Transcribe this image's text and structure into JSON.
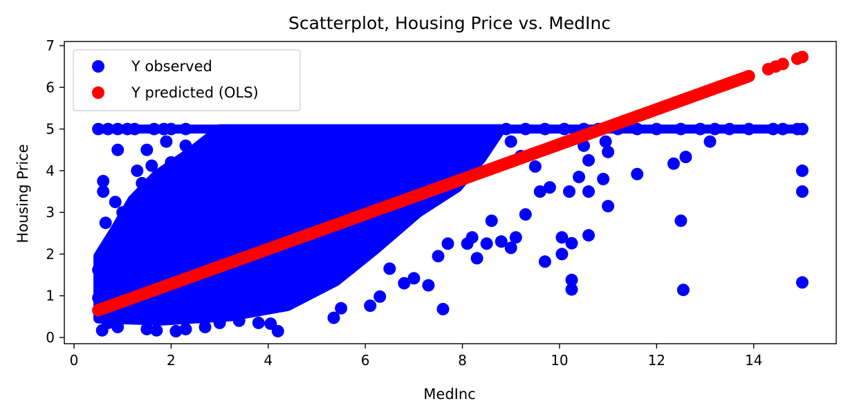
{
  "chart_data": {
    "type": "scatter",
    "title": "Scatterplot, Housing Price vs. MedInc",
    "xlabel": "MedInc",
    "ylabel": "Housing Price",
    "xlim": [
      -0.2,
      15.7
    ],
    "ylim": [
      -0.15,
      7.1
    ],
    "xticks": [
      0,
      2,
      4,
      6,
      8,
      10,
      12,
      14
    ],
    "yticks": [
      0,
      1,
      2,
      3,
      4,
      5,
      6,
      7
    ],
    "grid": false,
    "legend_position": "top-left",
    "series": [
      {
        "name": "Y observed",
        "color": "#0000ff",
        "points": [
          [
            0.5,
            1.62
          ],
          [
            0.55,
            1.1
          ],
          [
            0.6,
            0.8
          ],
          [
            0.5,
            0.95
          ],
          [
            0.58,
            0.17
          ],
          [
            0.7,
            1.3
          ],
          [
            0.8,
            1.55
          ],
          [
            0.95,
            1.95
          ],
          [
            1.2,
            2.3
          ],
          [
            1.1,
            2.75
          ],
          [
            0.65,
            2.75
          ],
          [
            0.6,
            3.5
          ],
          [
            0.6,
            3.75
          ],
          [
            0.85,
            3.25
          ],
          [
            1.0,
            3.0
          ],
          [
            0.9,
            4.5
          ],
          [
            1.3,
            4.0
          ],
          [
            1.5,
            4.5
          ],
          [
            1.9,
            4.7
          ],
          [
            1.6,
            4.12
          ],
          [
            1.4,
            3.7
          ],
          [
            1.8,
            3.55
          ],
          [
            2.2,
            3.8
          ],
          [
            2.0,
            4.2
          ],
          [
            2.5,
            4.3
          ],
          [
            2.3,
            4.6
          ],
          [
            0.7,
            0.35
          ],
          [
            0.9,
            0.25
          ],
          [
            1.2,
            0.5
          ],
          [
            1.5,
            0.2
          ],
          [
            1.7,
            0.17
          ],
          [
            2.1,
            0.15
          ],
          [
            2.3,
            0.2
          ],
          [
            2.7,
            0.25
          ],
          [
            3.0,
            0.35
          ],
          [
            3.4,
            0.4
          ],
          [
            3.8,
            0.35
          ],
          [
            4.05,
            0.33
          ],
          [
            4.2,
            0.15
          ],
          [
            5.35,
            0.47
          ],
          [
            5.5,
            0.7
          ],
          [
            6.1,
            0.76
          ],
          [
            6.3,
            0.98
          ],
          [
            7.6,
            0.68
          ],
          [
            7.3,
            1.25
          ],
          [
            6.8,
            1.3
          ],
          [
            7.0,
            1.42
          ],
          [
            6.5,
            1.65
          ],
          [
            7.5,
            1.95
          ],
          [
            8.3,
            1.9
          ],
          [
            8.1,
            2.25
          ],
          [
            8.5,
            2.25
          ],
          [
            8.8,
            2.3
          ],
          [
            9.0,
            2.15
          ],
          [
            9.1,
            2.4
          ],
          [
            8.2,
            2.4
          ],
          [
            7.7,
            2.25
          ],
          [
            8.6,
            2.8
          ],
          [
            9.3,
            2.95
          ],
          [
            9.7,
            1.82
          ],
          [
            10.05,
            2.0
          ],
          [
            10.25,
            2.26
          ],
          [
            10.05,
            2.4
          ],
          [
            10.25,
            1.38
          ],
          [
            10.25,
            1.15
          ],
          [
            10.6,
            2.45
          ],
          [
            9.6,
            3.5
          ],
          [
            9.8,
            3.6
          ],
          [
            10.2,
            3.5
          ],
          [
            10.6,
            3.5
          ],
          [
            10.4,
            3.85
          ],
          [
            10.9,
            3.8
          ],
          [
            11.0,
            3.15
          ],
          [
            11.6,
            3.92
          ],
          [
            12.35,
            4.17
          ],
          [
            12.6,
            4.33
          ],
          [
            12.5,
            2.8
          ],
          [
            12.55,
            1.14
          ],
          [
            13.1,
            4.7
          ],
          [
            10.95,
            4.7
          ],
          [
            11.0,
            4.45
          ],
          [
            10.5,
            4.6
          ],
          [
            10.6,
            4.25
          ],
          [
            9.5,
            4.1
          ],
          [
            9.2,
            4.35
          ],
          [
            9.0,
            4.7
          ],
          [
            15.0,
            4.0
          ],
          [
            15.0,
            3.5
          ],
          [
            15.0,
            1.32
          ],
          [
            15.0,
            5.0
          ],
          [
            14.9,
            5.0
          ],
          [
            14.6,
            5.0
          ],
          [
            14.4,
            5.0
          ],
          [
            13.9,
            5.0
          ],
          [
            13.5,
            5.0
          ],
          [
            13.2,
            5.0
          ],
          [
            12.9,
            5.0
          ],
          [
            12.5,
            5.0
          ],
          [
            12.0,
            5.0
          ],
          [
            11.6,
            5.0
          ],
          [
            11.2,
            5.0
          ],
          [
            10.8,
            5.0
          ],
          [
            10.5,
            5.0
          ],
          [
            10.1,
            5.0
          ],
          [
            9.7,
            5.0
          ],
          [
            9.3,
            5.0
          ],
          [
            8.9,
            5.0
          ],
          [
            0.5,
            5.0
          ],
          [
            0.7,
            5.0
          ],
          [
            0.9,
            5.0
          ],
          [
            1.1,
            5.0
          ],
          [
            1.25,
            5.0
          ],
          [
            1.65,
            5.0
          ],
          [
            1.85,
            5.0
          ],
          [
            2.0,
            5.0
          ],
          [
            2.3,
            5.0
          ]
        ]
      },
      {
        "name": "Y predicted (OLS)",
        "color": "#ff0000",
        "line": {
          "intercept": 0.444,
          "slope": 0.419,
          "x_start": 0.5,
          "x_end": 15.0
        }
      }
    ]
  }
}
